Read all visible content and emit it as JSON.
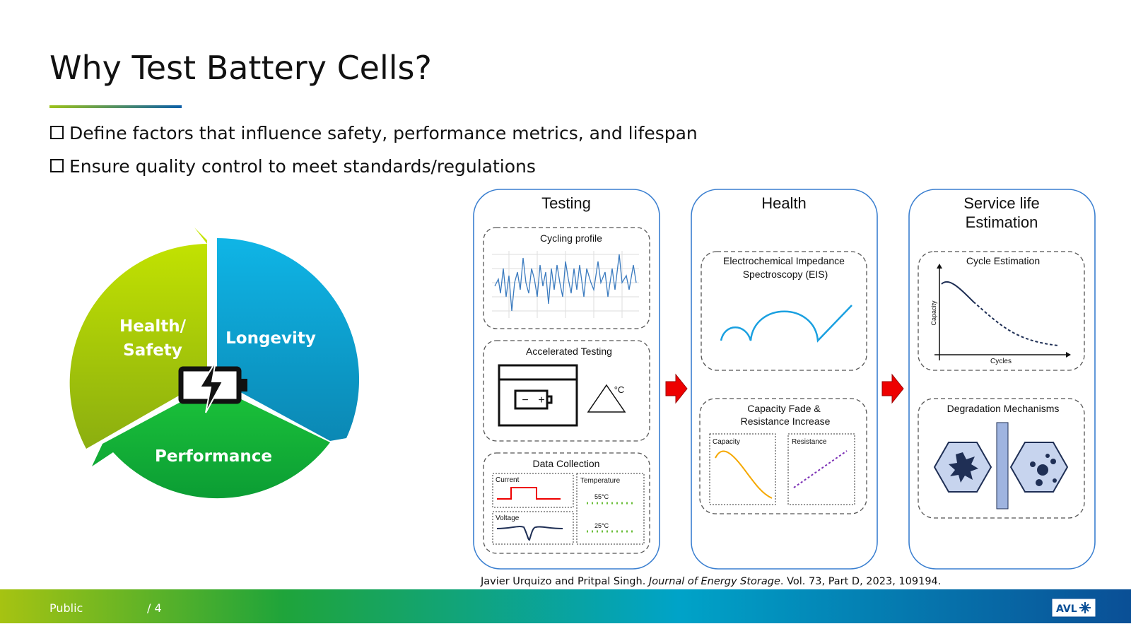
{
  "header": {
    "title": "Why Test Battery Cells?"
  },
  "bullets": [
    "Define factors that influence safety, performance metrics, and lifespan",
    "Ensure quality control to meet standards/regulations"
  ],
  "cycle": {
    "health_safety": [
      "Health/",
      "Safety"
    ],
    "longevity": "Longevity",
    "performance": "Performance"
  },
  "panels": [
    {
      "title": [
        "Testing"
      ],
      "boxes": [
        {
          "label": "Cycling profile"
        },
        {
          "label": "Accelerated Testing",
          "unit": "°C"
        },
        {
          "label": "Data Collection",
          "sub": [
            "Current",
            "Temperature",
            "Voltage"
          ],
          "temps": [
            "55°C",
            "25°C"
          ]
        }
      ]
    },
    {
      "title": [
        "Health"
      ],
      "boxes": [
        {
          "label": [
            "Electrochemical Impedance",
            "Spectroscopy (EIS)"
          ]
        },
        {
          "label": [
            "Capacity Fade &",
            "Resistance Increase"
          ],
          "sub": [
            "Capacity",
            "Resistance"
          ]
        }
      ]
    },
    {
      "title": [
        "Service life",
        "Estimation"
      ],
      "boxes": [
        {
          "label": "Cycle Estimation",
          "y_axis": "Capacity",
          "x_axis": "Cycles"
        },
        {
          "label": "Degradation Mechanisms"
        }
      ]
    }
  ],
  "citation": {
    "authors": "Javier Urquizo and Pritpal Singh. ",
    "journal": "Journal of Energy Storage",
    "details": ". Vol. 73, Part D, 2023, 109194."
  },
  "footer": {
    "classification": "Public",
    "page": "/ 4",
    "logo": "AVL"
  }
}
